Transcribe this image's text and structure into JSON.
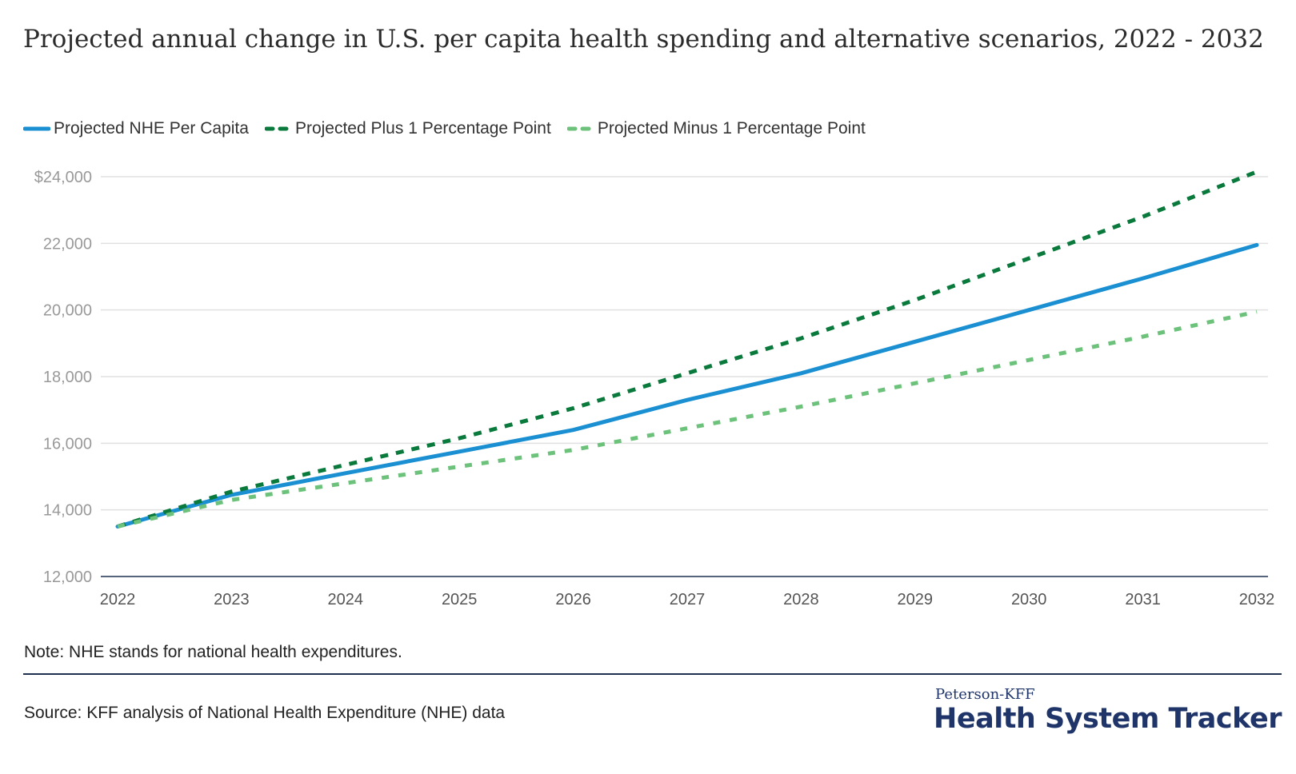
{
  "title": "Projected annual change in U.S. per capita health spending and alternative scenarios, 2022 - 2032",
  "note": "Note: NHE stands for national health expenditures.",
  "source": "Source: KFF analysis of National Health Expenditure (NHE) data",
  "brand": {
    "small": "Peterson-KFF",
    "big": "Health System Tracker"
  },
  "colors": {
    "nhe": "#1a8fd2",
    "plus": "#0a7a3c",
    "minus": "#6cc27a",
    "grid": "#e0e0e0",
    "axis": "#1f3050"
  },
  "chart_data": {
    "type": "line",
    "title": "Projected annual change in U.S. per capita health spending and alternative scenarios, 2022 - 2032",
    "xlabel": "",
    "ylabel": "",
    "x": [
      2022,
      2023,
      2024,
      2025,
      2026,
      2027,
      2028,
      2029,
      2030,
      2031,
      2032
    ],
    "ylim": [
      12000,
      24000
    ],
    "yticks": [
      12000,
      14000,
      16000,
      18000,
      20000,
      22000,
      24000
    ],
    "ytick_labels": [
      "12,000",
      "14,000",
      "16,000",
      "18,000",
      "20,000",
      "22,000",
      "$24,000"
    ],
    "xtick_labels": [
      "2022",
      "2023",
      "2024",
      "2025",
      "2026",
      "2027",
      "2028",
      "2029",
      "2030",
      "2031",
      "2032"
    ],
    "legend_position": "top-left",
    "series": [
      {
        "name": "Projected NHE Per Capita",
        "style": "solid",
        "color": "#1a8fd2",
        "values": [
          13500,
          14450,
          15100,
          15750,
          16400,
          17300,
          18100,
          19050,
          20000,
          20950,
          21950
        ]
      },
      {
        "name": "Projected Plus 1 Percentage Point",
        "style": "dashed",
        "color": "#0a7a3c",
        "values": [
          13500,
          14550,
          15350,
          16150,
          17050,
          18100,
          19150,
          20300,
          21550,
          22800,
          24150
        ]
      },
      {
        "name": "Projected Minus 1 Percentage Point",
        "style": "dotted",
        "color": "#6cc27a",
        "values": [
          13500,
          14300,
          14800,
          15300,
          15800,
          16450,
          17100,
          17800,
          18500,
          19200,
          19950
        ]
      }
    ]
  }
}
